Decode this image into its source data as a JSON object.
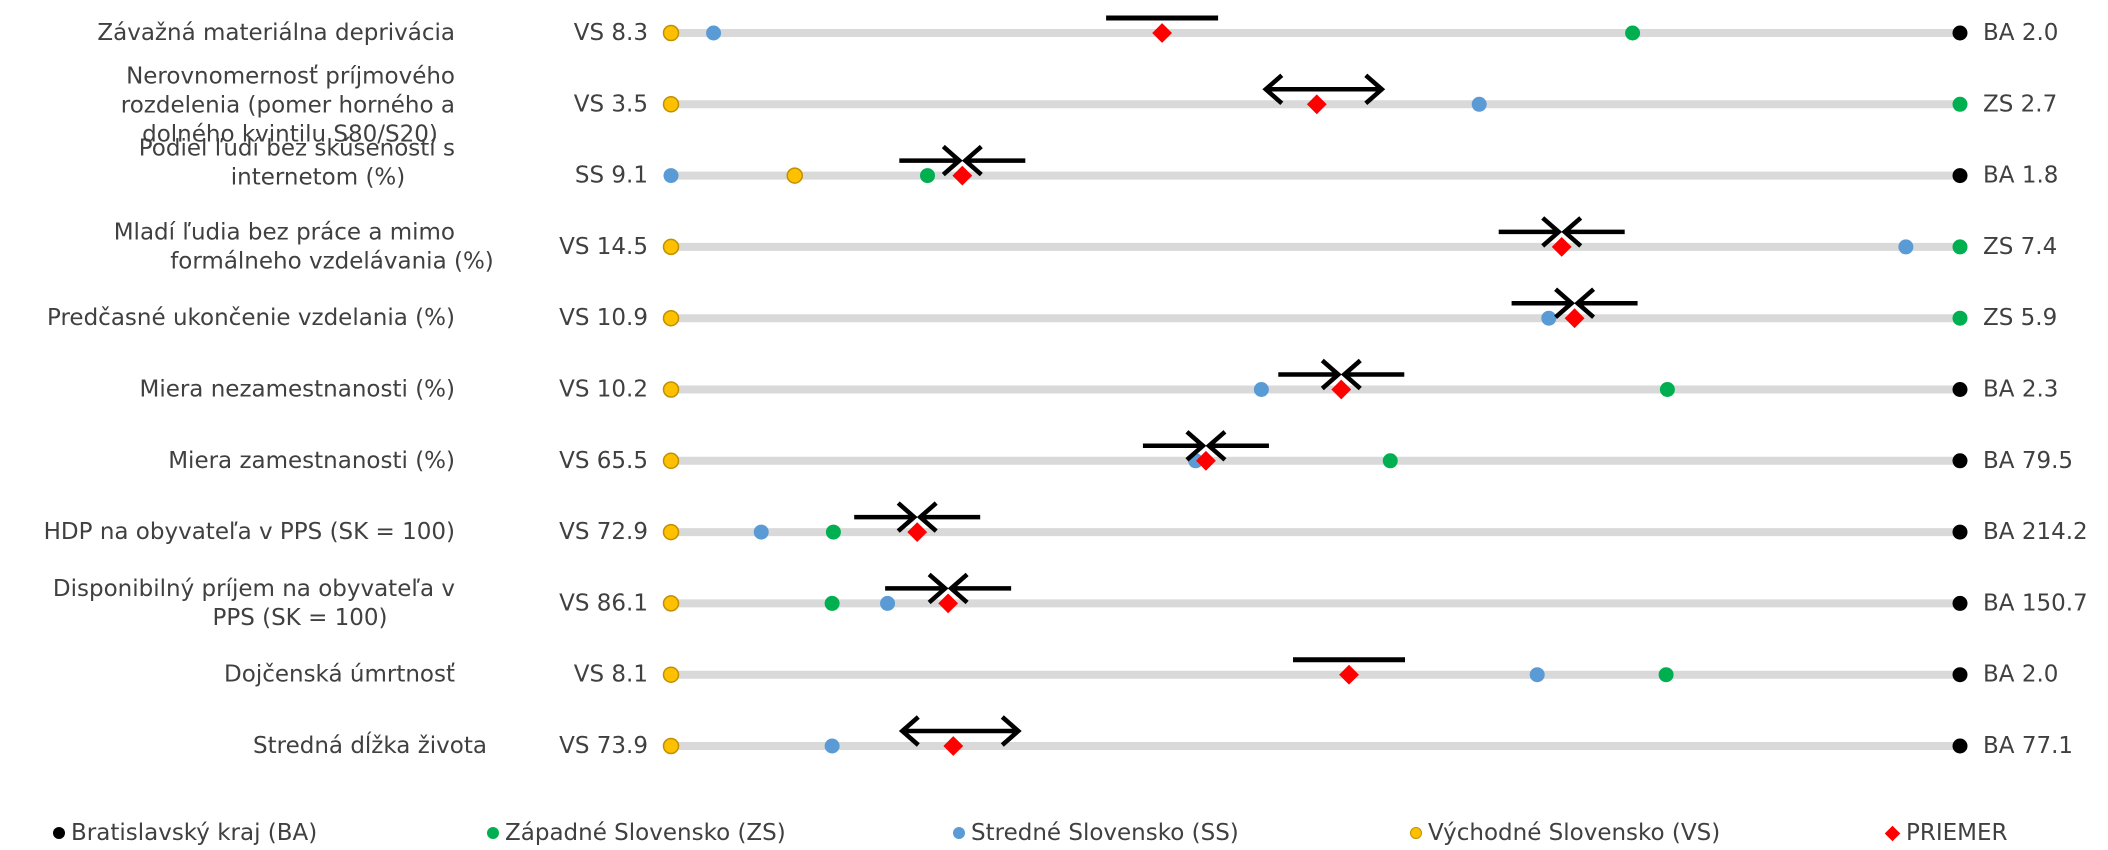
{
  "chart_data": {
    "type": "dot-range",
    "colors": {
      "track": "#d9d9d9",
      "BA": "#000000",
      "ZS": "#00b050",
      "SS": "#5b9bd5",
      "VS": "#ffc000",
      "VS_border": "#bf9000",
      "PRIEMER": "#ff0000",
      "marker": "#000000"
    },
    "rows": [
      {
        "label": "Závažná materiálna deprivácia",
        "left": "VS 8.3",
        "right": "BA 2.0",
        "right_key": "BA",
        "points": {
          "SS": 0.033,
          "ZS": 0.746,
          "PRIEMER": 0.381
        },
        "marker": "bar"
      },
      {
        "label": "Nerovnomernosť príjmového rozdelenia (pomer horného a dolného kvintilu S80/S20)",
        "left": "VS 3.5",
        "right": "ZS 2.7",
        "right_key": "ZS",
        "points": {
          "SS": 0.627,
          "PRIEMER": 0.501
        },
        "marker": "diverge"
      },
      {
        "label": "Podiel ľudí bez skúseností s internetom (%)",
        "left": "SS 9.1",
        "right": "BA 1.8",
        "right_key": "BA",
        "points": {
          "VS": 0.096,
          "ZS": 0.199,
          "PRIEMER": 0.226
        },
        "marker": "converge"
      },
      {
        "label": "Mladí ľudia bez práce a mimo formálneho vzdelávania (%)",
        "left": "VS 14.5",
        "right": "ZS 7.4",
        "right_key": "ZS",
        "points": {
          "SS": 0.958,
          "PRIEMER": 0.691
        },
        "marker": "converge"
      },
      {
        "label": "Predčasné ukončenie vzdelania (%)",
        "left": "VS 10.9",
        "right": "ZS 5.9",
        "right_key": "ZS",
        "points": {
          "SS": 0.681,
          "PRIEMER": 0.701
        },
        "marker": "converge"
      },
      {
        "label": "Miera nezamestnanosti (%)",
        "left": "VS 10.2",
        "right": "BA 2.3",
        "right_key": "BA",
        "points": {
          "SS": 0.458,
          "ZS": 0.773,
          "PRIEMER": 0.52
        },
        "marker": "converge"
      },
      {
        "label": "Miera zamestnanosti  (%)",
        "left": "VS 65.5",
        "right": "BA 79.5",
        "right_key": "BA",
        "points": {
          "SS": 0.407,
          "ZS": 0.558,
          "PRIEMER": 0.415
        },
        "marker": "converge"
      },
      {
        "label": "HDP na obyvateľa v PPS (SK = 100)",
        "left": "VS 72.9",
        "right": "BA 214.2",
        "right_key": "BA",
        "points": {
          "SS": 0.07,
          "ZS": 0.126,
          "PRIEMER": 0.191
        },
        "marker": "converge"
      },
      {
        "label": "Disponibilný príjem na obyvateľa v PPS (SK = 100)",
        "left": "VS 86.1",
        "right": "BA 150.7",
        "right_key": "BA",
        "points": {
          "ZS": 0.125,
          "SS": 0.168,
          "PRIEMER": 0.215
        },
        "marker": "converge"
      },
      {
        "label": "Dojčenská úmrtnosť",
        "left": "VS 8.1",
        "right": "BA 2.0",
        "right_key": "BA",
        "points": {
          "SS": 0.672,
          "ZS": 0.772,
          "PRIEMER": 0.526
        },
        "marker": "bar"
      },
      {
        "label": "Stredná dĺžka života",
        "left": "VS 73.9",
        "right": "BA 77.1",
        "right_key": "BA",
        "points": {
          "SS": 0.125,
          "PRIEMER": 0.219
        },
        "marker": "diverge"
      }
    ],
    "legend": [
      {
        "key": "BA",
        "label": "Bratislavský kraj (BA)"
      },
      {
        "key": "ZS",
        "label": "Západné Slovensko (ZS)"
      },
      {
        "key": "SS",
        "label": "Stredné Slovensko (SS)"
      },
      {
        "key": "VS",
        "label": "Východné Slovensko (VS)"
      },
      {
        "key": "PRIEMER",
        "label": "PRIEMER"
      }
    ]
  }
}
